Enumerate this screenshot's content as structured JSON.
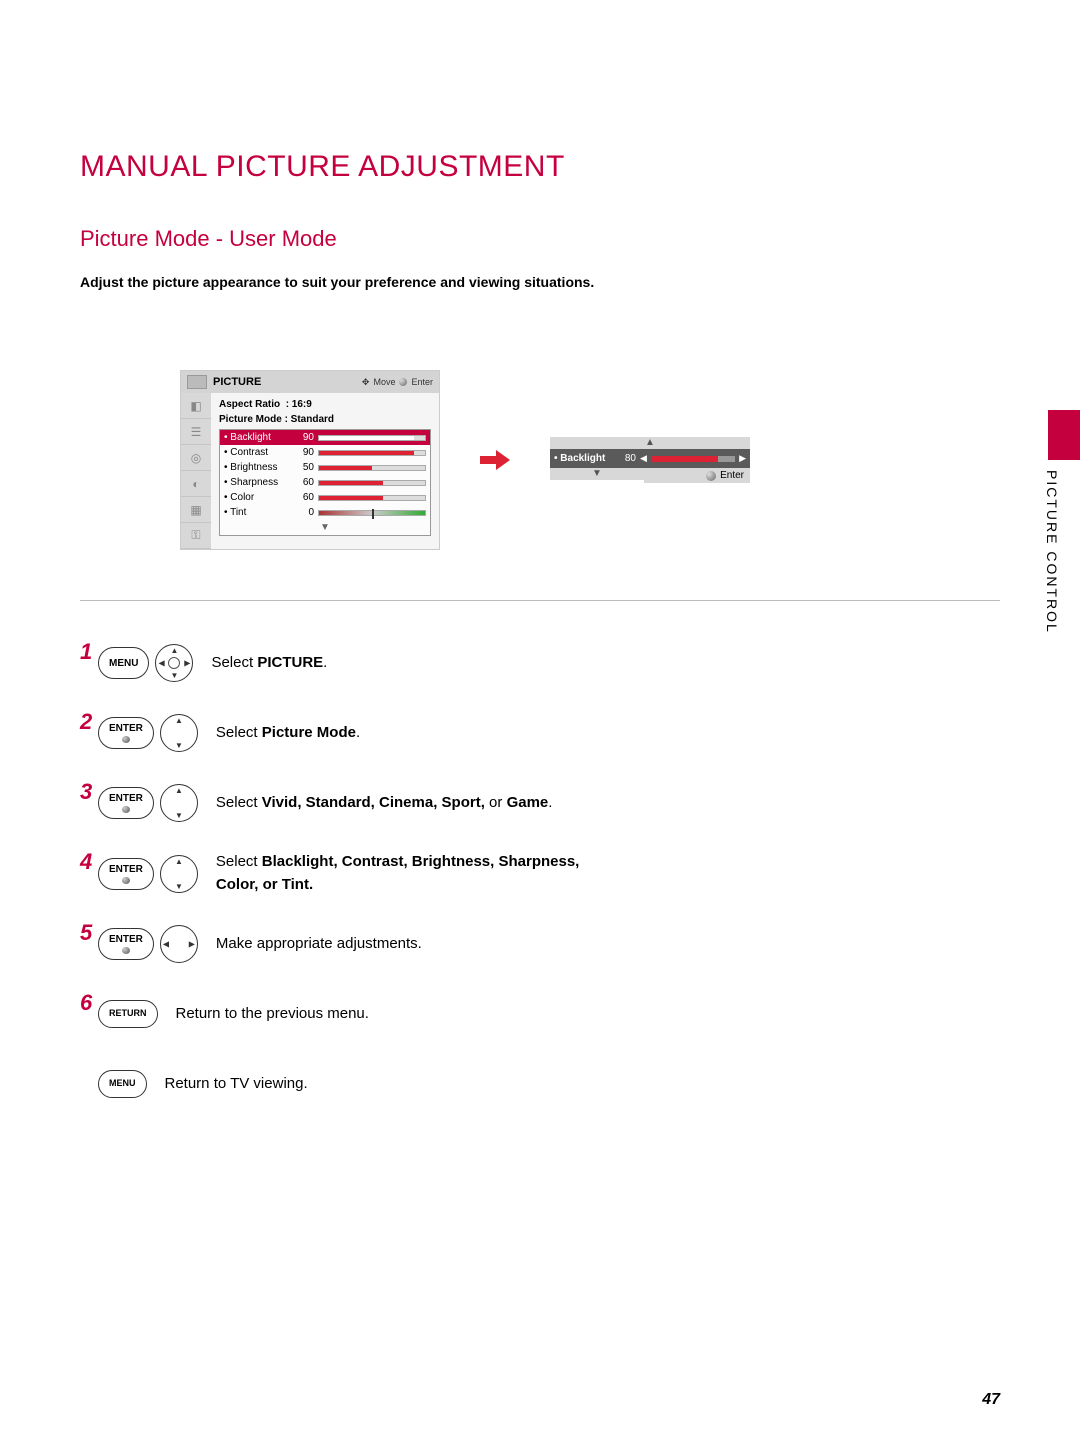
{
  "title": "MANUAL PICTURE ADJUSTMENT",
  "subtitle": "Picture Mode - User Mode",
  "intro": "Adjust the picture appearance to suit your preference and viewing situations.",
  "side_label": "PICTURE CONTROL",
  "page_number": "47",
  "osd": {
    "header_title": "PICTURE",
    "header_move": "Move",
    "header_enter": "Enter",
    "aspect_label": "Aspect Ratio",
    "aspect_value": ": 16:9",
    "mode_label": "Picture Mode",
    "mode_value": ": Standard",
    "settings": [
      {
        "label": "• Backlight",
        "value": "90",
        "pct": 90,
        "highlight": true
      },
      {
        "label": "• Contrast",
        "value": "90",
        "pct": 90,
        "highlight": false
      },
      {
        "label": "• Brightness",
        "value": "50",
        "pct": 50,
        "highlight": false
      },
      {
        "label": "• Sharpness",
        "value": "60",
        "pct": 60,
        "highlight": false
      },
      {
        "label": "• Color",
        "value": "60",
        "pct": 60,
        "highlight": false
      },
      {
        "label": "• Tint",
        "value": "0",
        "pct": 50,
        "highlight": false,
        "tint": true
      }
    ]
  },
  "popout": {
    "label": "• Backlight",
    "value": "80",
    "pct": 80,
    "enter": "Enter"
  },
  "steps": {
    "s1": {
      "num": "1",
      "btn": "MENU",
      "pre": "Select ",
      "bold": "PICTURE",
      "post": "."
    },
    "s2": {
      "num": "2",
      "btn": "ENTER",
      "pre": "Select ",
      "bold": "Picture Mode",
      "post": "."
    },
    "s3": {
      "num": "3",
      "btn": "ENTER",
      "pre": "Select ",
      "bold": "Vivid, Standard, Cinema, Sport,",
      "mid": " or ",
      "bold2": "Game",
      "post": "."
    },
    "s4": {
      "num": "4",
      "btn": "ENTER",
      "pre": "Select ",
      "bold": "Blacklight, Contrast, Brightness, Sharpness, Color, or Tint."
    },
    "s5": {
      "num": "5",
      "btn": "ENTER",
      "text": "Make appropriate adjustments."
    },
    "s6": {
      "num": "6",
      "btn": "RETURN",
      "text": "Return to the previous menu."
    },
    "s7": {
      "btn": "MENU",
      "text": "Return to TV viewing."
    }
  }
}
